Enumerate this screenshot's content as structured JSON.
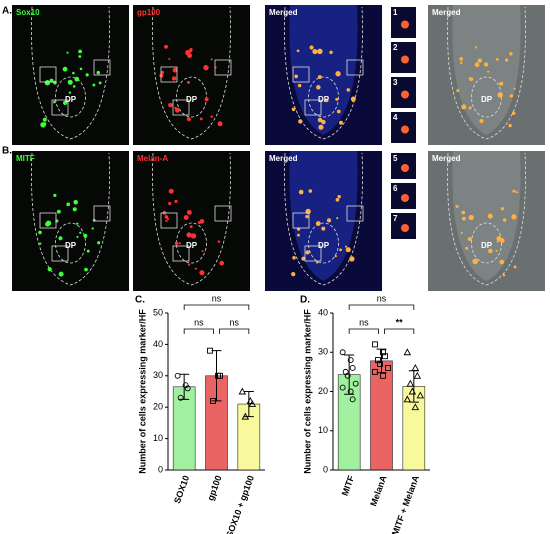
{
  "panels": {
    "center_label": "DP",
    "rows": [
      {
        "letter": "A.",
        "labels": [
          "Sox10",
          "gp100",
          "Merged",
          "Merged"
        ],
        "insets": [
          "1",
          "2",
          "3",
          "4"
        ]
      },
      {
        "letter": "B.",
        "labels": [
          "MITF",
          "Melan-A",
          "Merged",
          "Merged"
        ],
        "insets": [
          "5",
          "6",
          "7"
        ]
      }
    ]
  },
  "chart_data": [
    {
      "type": "bar",
      "letter": "C.",
      "ylabel": "Number of cells expressing marker/HF",
      "categories": [
        "SOX10",
        "gp100",
        "SOX10 + gp100"
      ],
      "values": [
        26.5,
        30,
        21
      ],
      "errors": [
        4,
        8,
        4
      ],
      "colors": [
        "#90ee90",
        "#e84a4a",
        "#f7f78c"
      ],
      "points": [
        [
          30,
          27,
          26,
          23
        ],
        [
          38,
          30,
          30,
          22
        ],
        [
          25,
          22,
          21,
          17
        ]
      ],
      "significance": [
        "ns",
        "ns",
        "ns"
      ],
      "ylim": [
        0,
        50
      ],
      "yticks": [
        0,
        10,
        20,
        30,
        40,
        50
      ]
    },
    {
      "type": "bar",
      "letter": "D.",
      "ylabel": "Number of cells expressing marker/HF",
      "categories": [
        "MITF",
        "MelanA",
        "MITF + MelanA"
      ],
      "values": [
        24.3,
        27.8,
        21.3
      ],
      "errors": [
        5,
        3,
        4
      ],
      "colors": [
        "#90ee90",
        "#e84a4a",
        "#f7f78c"
      ],
      "points": [
        [
          30,
          28,
          26,
          25,
          24,
          22,
          21,
          20,
          18
        ],
        [
          32,
          30,
          29,
          28,
          27,
          26,
          25,
          24
        ],
        [
          30,
          26,
          24,
          22,
          20,
          19,
          18,
          16
        ]
      ],
      "significance": [
        "ns",
        "**",
        "ns"
      ],
      "ylim": [
        0,
        40
      ],
      "yticks": [
        0,
        10,
        20,
        30,
        40
      ]
    }
  ]
}
